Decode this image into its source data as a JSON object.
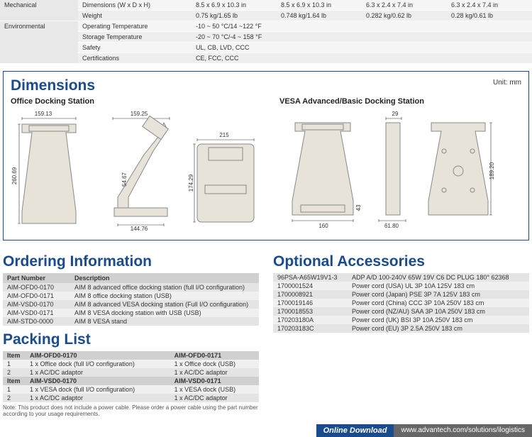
{
  "spec": {
    "mechanical": {
      "label": "Mechanical",
      "rows": [
        {
          "label": "Dimensions (W x D x H)",
          "vals": [
            "8.5 x 6.9 x 10.3 in",
            "8.5 x 6.9 x 10.3 in",
            "6.3 x 2.4 x 7.4 in",
            "6.3 x 2.4 x 7.4 in"
          ]
        },
        {
          "label": "Weight",
          "vals": [
            "0.75 kg/1.65 lb",
            "0.748 kg/1.64 lb",
            "0.282 kg/0.62 lb",
            "0.28 kg/0.61 lb"
          ]
        }
      ]
    },
    "environmental": {
      "label": "Environmental",
      "rows": [
        {
          "label": "Operating Temperature",
          "vals": [
            "-10 ~ 50 °C/14 ~122 °F",
            "",
            "",
            ""
          ]
        },
        {
          "label": "Storage Temperature",
          "vals": [
            "-20 ~ 70 °C/-4 ~ 158 °F",
            "",
            "",
            ""
          ]
        },
        {
          "label": "Safety",
          "vals": [
            "UL, CB, LVD, CCC",
            "",
            "",
            ""
          ]
        },
        {
          "label": "Certifications",
          "vals": [
            "CE, FCC, CCC",
            "",
            "",
            ""
          ]
        }
      ]
    }
  },
  "dimensions": {
    "title": "Dimensions",
    "unit": "Unit: mm",
    "office_title": "Office Docking Station",
    "vesa_title": "VESA Advanced/Basic Docking Station",
    "office_dims": {
      "w1": "159.13",
      "w2": "159.25",
      "h1": "260.69",
      "h2": "54.67",
      "w3": "144.76",
      "w4": "215",
      "h3": "174.29"
    },
    "vesa_dims": {
      "w1": "160",
      "w2": "61.80",
      "h1": "43",
      "w3": "29",
      "h2": "189.20"
    }
  },
  "ordering": {
    "title": "Ordering Information",
    "columns": [
      "Part Number",
      "Description"
    ],
    "rows": [
      [
        "AIM-OFD0-0170",
        "AIM 8 advanced office docking station (full I/O configuration)"
      ],
      [
        "AIM-OFD0-0171",
        "AIM 8 office docking station (USB)"
      ],
      [
        "AIM-VSD0-0170",
        "AIM 8 advanced VESA docking station (Full I/O configuration)"
      ],
      [
        "AIM-VSD0-0171",
        "AIM 8 VESA docking station with USB (USB)"
      ],
      [
        "AIM-STD0-0000",
        "AIM 8 VESA stand"
      ]
    ]
  },
  "packing": {
    "title": "Packing List",
    "sets": [
      {
        "header": [
          "Item",
          "AIM-OFD0-0170",
          "AIM-OFD0-0171"
        ],
        "rows": [
          [
            "1",
            "1 x Office dock (full I/O configuration)",
            "1 x Office dock (USB)"
          ],
          [
            "2",
            "1 x AC/DC adaptor",
            "1 x AC/DC adaptor"
          ]
        ]
      },
      {
        "header": [
          "Item",
          "AIM-VSD0-0170",
          "AIM-VSD0-0171"
        ],
        "rows": [
          [
            "1",
            "1 x VESA dock (full I/O configuration)",
            "1 x VESA dock (USB)"
          ],
          [
            "2",
            "1 x AC/DC adaptor",
            "1 x AC/DC adaptor"
          ]
        ]
      }
    ],
    "note": "Note: This product does not include a power cable. Please order a power cable using the part number according to your usage requirements."
  },
  "accessories": {
    "title": "Optional Accessories",
    "rows": [
      [
        "96PSA-A65W19V1-3",
        "ADP A/D 100-240V 65W 19V C6 DC PLUG 180° 62368"
      ],
      [
        "1700001524",
        "Power cord (USA) UL 3P 10A 125V 183 cm"
      ],
      [
        "1700008921",
        "Power cord (Japan) PSE 3P 7A 125V 183 cm"
      ],
      [
        "1700019146",
        "Power cord (China) CCC 3P 10A 250V 183 cm"
      ],
      [
        "1700018553",
        "Power cord (NZ/AU) SAA 3P 10A 250V 183 cm"
      ],
      [
        "170203180A",
        "Power cord (UK) BSI 3P 10A 250V 183 cm"
      ],
      [
        "170203183C",
        "Power cord (EU) 3P 2.5A 250V 183 cm"
      ]
    ]
  },
  "footer": {
    "label": "Online Download",
    "url": "www.advantech.com/solutions/ilogistics"
  },
  "colors": {
    "brand": "#1a4b8c",
    "gray_dark": "#666",
    "diagram_fill": "#e8e3d8"
  }
}
